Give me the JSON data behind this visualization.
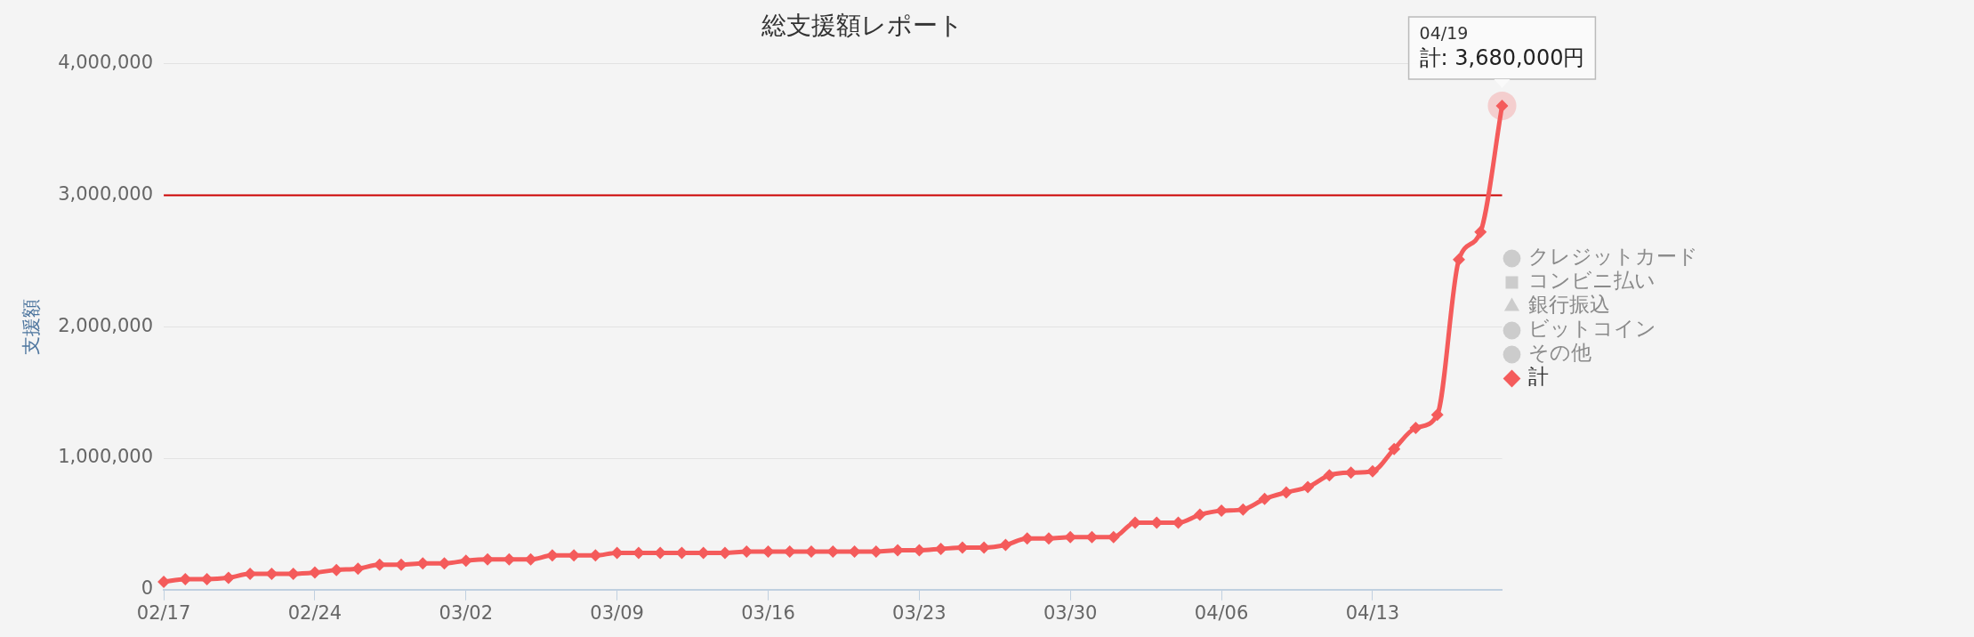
{
  "chart_data": {
    "type": "line",
    "title": "総支援額レポート",
    "ylabel": "支援額",
    "categories": [
      "02/17",
      null,
      null,
      null,
      null,
      null,
      null,
      "02/24",
      null,
      null,
      null,
      null,
      null,
      null,
      "03/02",
      null,
      null,
      null,
      null,
      null,
      null,
      "03/09",
      null,
      null,
      null,
      null,
      null,
      null,
      "03/16",
      null,
      null,
      null,
      null,
      null,
      null,
      "03/23",
      null,
      null,
      null,
      null,
      null,
      null,
      "03/30",
      null,
      null,
      null,
      null,
      null,
      null,
      "04/06",
      null,
      null,
      null,
      null,
      null,
      null,
      "04/13",
      null,
      null,
      null,
      null,
      null,
      null
    ],
    "series": [
      {
        "name": "クレジットカード",
        "color": "#cccccc",
        "marker": "circle",
        "values": [
          null,
          null,
          null,
          null,
          null,
          null,
          null,
          null,
          null,
          null,
          null,
          null,
          null,
          null,
          null,
          null,
          null,
          null,
          null,
          null,
          null,
          null,
          null,
          null,
          null,
          null,
          null,
          null,
          null,
          null,
          null,
          null,
          null,
          null,
          null,
          null,
          null,
          null,
          null,
          null,
          null,
          null,
          null,
          null,
          null,
          null,
          null,
          null,
          null,
          null,
          null,
          null,
          null,
          null,
          null,
          null,
          null,
          null,
          null,
          null,
          null,
          null,
          null
        ]
      },
      {
        "name": "コンビニ払い",
        "color": "#cccccc",
        "marker": "square",
        "values": [
          null,
          null,
          null,
          null,
          null,
          null,
          null,
          null,
          null,
          null,
          null,
          null,
          null,
          null,
          null,
          null,
          null,
          null,
          null,
          null,
          null,
          null,
          null,
          null,
          null,
          null,
          null,
          null,
          null,
          null,
          null,
          null,
          null,
          null,
          null,
          null,
          null,
          null,
          null,
          null,
          null,
          null,
          null,
          null,
          null,
          null,
          null,
          null,
          null,
          null,
          null,
          null,
          null,
          null,
          null,
          null,
          null,
          null,
          null,
          null,
          null,
          null,
          null
        ]
      },
      {
        "name": "銀行振込",
        "color": "#cccccc",
        "marker": "triangle",
        "values": [
          null,
          null,
          null,
          null,
          null,
          null,
          null,
          null,
          null,
          null,
          null,
          null,
          null,
          null,
          null,
          null,
          null,
          null,
          null,
          null,
          null,
          null,
          null,
          null,
          null,
          null,
          null,
          null,
          null,
          null,
          null,
          null,
          null,
          null,
          null,
          null,
          null,
          null,
          null,
          null,
          null,
          null,
          null,
          null,
          null,
          null,
          null,
          null,
          null,
          null,
          null,
          null,
          null,
          null,
          null,
          null,
          null,
          null,
          null,
          null,
          null,
          null,
          null
        ]
      },
      {
        "name": "ビットコイン",
        "color": "#cccccc",
        "marker": "circle",
        "values": [
          null,
          null,
          null,
          null,
          null,
          null,
          null,
          null,
          null,
          null,
          null,
          null,
          null,
          null,
          null,
          null,
          null,
          null,
          null,
          null,
          null,
          null,
          null,
          null,
          null,
          null,
          null,
          null,
          null,
          null,
          null,
          null,
          null,
          null,
          null,
          null,
          null,
          null,
          null,
          null,
          null,
          null,
          null,
          null,
          null,
          null,
          null,
          null,
          null,
          null,
          null,
          null,
          null,
          null,
          null,
          null,
          null,
          null,
          null,
          null,
          null,
          null,
          null
        ]
      },
      {
        "name": "その他",
        "color": "#cccccc",
        "marker": "circle",
        "values": [
          null,
          null,
          null,
          null,
          null,
          null,
          null,
          null,
          null,
          null,
          null,
          null,
          null,
          null,
          null,
          null,
          null,
          null,
          null,
          null,
          null,
          null,
          null,
          null,
          null,
          null,
          null,
          null,
          null,
          null,
          null,
          null,
          null,
          null,
          null,
          null,
          null,
          null,
          null,
          null,
          null,
          null,
          null,
          null,
          null,
          null,
          null,
          null,
          null,
          null,
          null,
          null,
          null,
          null,
          null,
          null,
          null,
          null,
          null,
          null,
          null,
          null,
          null
        ]
      },
      {
        "name": "計",
        "color": "#f45b5b",
        "marker": "diamond",
        "values": [
          60000,
          80000,
          80000,
          90000,
          120000,
          120000,
          120000,
          130000,
          150000,
          160000,
          190000,
          190000,
          200000,
          200000,
          220000,
          230000,
          230000,
          230000,
          260000,
          260000,
          260000,
          280000,
          280000,
          280000,
          280000,
          280000,
          280000,
          290000,
          290000,
          290000,
          290000,
          290000,
          290000,
          290000,
          300000,
          300000,
          310000,
          320000,
          320000,
          340000,
          390000,
          390000,
          400000,
          400000,
          400000,
          510000,
          510000,
          510000,
          570000,
          600000,
          610000,
          690000,
          740000,
          780000,
          870000,
          890000,
          900000,
          1070000,
          1230000,
          1330000,
          2510000,
          2720000,
          3680000
        ]
      }
    ],
    "ylim": [
      0,
      4000000
    ],
    "yticks": [
      0,
      {
        "value": 1000000,
        "label": "1,000,000"
      },
      {
        "value": 2000000,
        "label": "2,000,000"
      },
      {
        "value": 3000000,
        "label": "3,000,000"
      },
      {
        "value": 4000000,
        "label": "4,000,000"
      }
    ],
    "grid": "y",
    "legend": "right",
    "line_style": "solid",
    "ref_lines": [
      {
        "axis": "y",
        "value": 3000000,
        "color": "#cc0000"
      }
    ],
    "annotations": [
      "04/19",
      "計: 3,680,000円"
    ]
  }
}
